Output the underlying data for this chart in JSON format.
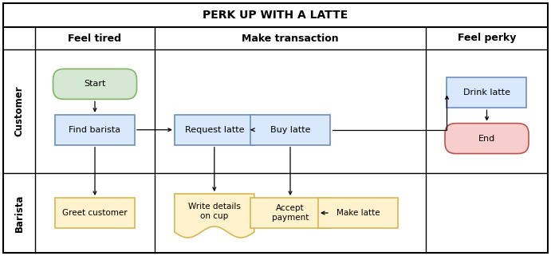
{
  "title": "PERK UP WITH A LATTE",
  "columns": [
    "Feel tired",
    "Make transaction",
    "Feel perky"
  ],
  "rows": [
    "Customer",
    "Barista"
  ],
  "bg_color": "#ffffff",
  "grid_color": "#000000",
  "title_font_size": 10,
  "label_font_size": 8,
  "row_label_font_size": 8.5,
  "col_header_font_size": 9,
  "shapes": {
    "start": {
      "label": "Start",
      "type": "rounded",
      "fc": "#d5e8d4",
      "ec": "#82b366"
    },
    "find_barista": {
      "label": "Find barista",
      "type": "rect",
      "fc": "#dae8fc",
      "ec": "#6c8ebf"
    },
    "request_latte": {
      "label": "Request latte",
      "type": "rect",
      "fc": "#dae8fc",
      "ec": "#6c8ebf"
    },
    "buy_latte": {
      "label": "Buy latte",
      "type": "rect",
      "fc": "#dae8fc",
      "ec": "#6c8ebf"
    },
    "drink_latte": {
      "label": "Drink latte",
      "type": "rect",
      "fc": "#dae8fc",
      "ec": "#6c8ebf"
    },
    "end": {
      "label": "End",
      "type": "rounded",
      "fc": "#f8cecc",
      "ec": "#b85450"
    },
    "greet_customer": {
      "label": "Greet customer",
      "type": "rect",
      "fc": "#fff2cc",
      "ec": "#d6b656"
    },
    "write_details": {
      "label": "Write details\non cup",
      "type": "wave",
      "fc": "#fff2cc",
      "ec": "#d6b656"
    },
    "accept_payment": {
      "label": "Accept\npayment",
      "type": "rect",
      "fc": "#fff2cc",
      "ec": "#d6b656"
    },
    "make_latte": {
      "label": "Make latte",
      "type": "rect",
      "fc": "#fff2cc",
      "ec": "#d6b656"
    }
  }
}
